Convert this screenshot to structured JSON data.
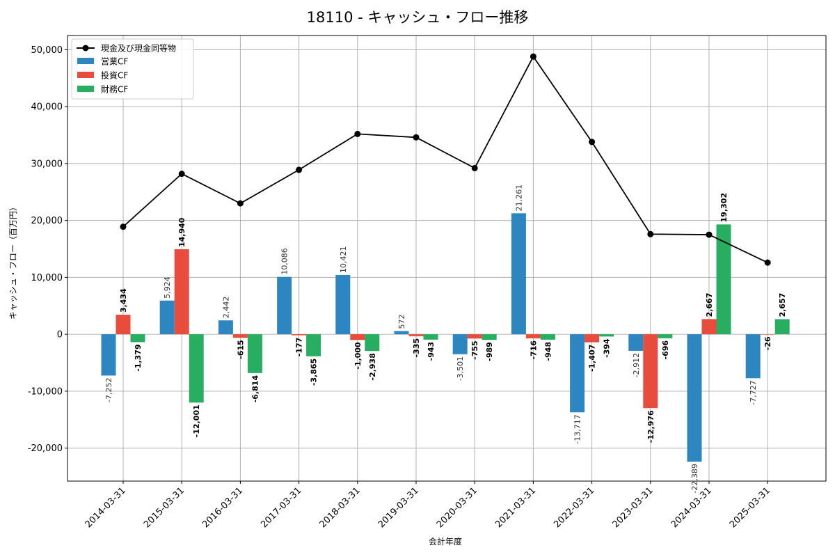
{
  "chart_data": {
    "type": "bar",
    "title": "18110 - キャッシュ・フロー推移",
    "xlabel": "会計年度",
    "ylabel": "キャッシュ・フロー（百万円）",
    "categories": [
      "2014-03-31",
      "2015-03-31",
      "2016-03-31",
      "2017-03-31",
      "2018-03-31",
      "2019-03-31",
      "2020-03-31",
      "2021-03-31",
      "2022-03-31",
      "2023-03-31",
      "2024-03-31",
      "2025-03-31"
    ],
    "series": [
      {
        "name": "営業CF",
        "type": "bar",
        "color": "#2e86c1",
        "values": [
          -7252,
          5924,
          2442,
          10086,
          10421,
          572,
          -3501,
          21261,
          -13717,
          -2912,
          -22389,
          -7727
        ]
      },
      {
        "name": "投資CF",
        "type": "bar",
        "color": "#e74c3c",
        "values": [
          3434,
          14940,
          -615,
          -177,
          -1000,
          -335,
          -755,
          -716,
          -1407,
          -12976,
          2667,
          -26
        ]
      },
      {
        "name": "財務CF",
        "type": "bar",
        "color": "#27ae60",
        "values": [
          -1379,
          -12001,
          -6814,
          -3865,
          -2938,
          -943,
          -989,
          -948,
          -394,
          -696,
          19302,
          2657
        ]
      }
    ],
    "line": {
      "name": "現金及び現金同等物",
      "color": "#000000",
      "values": [
        18900,
        28200,
        23000,
        28900,
        35200,
        34600,
        29200,
        48800,
        33800,
        17600,
        17500,
        12600
      ]
    },
    "data_labels": {
      "営業CF": [
        "-7,252",
        "5,924",
        "2,442",
        "10,086",
        "10,421",
        "572",
        "-3,501",
        "21,261",
        "-13,717",
        "-2,912",
        "-22,389",
        "-7,727"
      ],
      "投資CF": [
        "3,434",
        "14,940",
        "-615",
        "-177",
        "-1,000",
        "-335",
        "-755",
        "-716",
        "-1,407",
        "-12,976",
        "2,667",
        "-26"
      ],
      "財務CF": [
        "-1,379",
        "-12,001",
        "-6,814",
        "-3,865",
        "-2,938",
        "-943",
        "-989",
        "-948",
        "-394",
        "-696",
        "19,302",
        "2,657"
      ]
    },
    "yticks": [
      -20000,
      -10000,
      0,
      10000,
      20000,
      30000,
      40000,
      50000
    ],
    "ytick_labels": [
      "-20,000",
      "-10,000",
      "0",
      "10,000",
      "20,000",
      "30,000",
      "40,000",
      "50,000"
    ],
    "ylim": [
      -25800,
      52500
    ],
    "grid": true,
    "legend_position": "top-left"
  }
}
